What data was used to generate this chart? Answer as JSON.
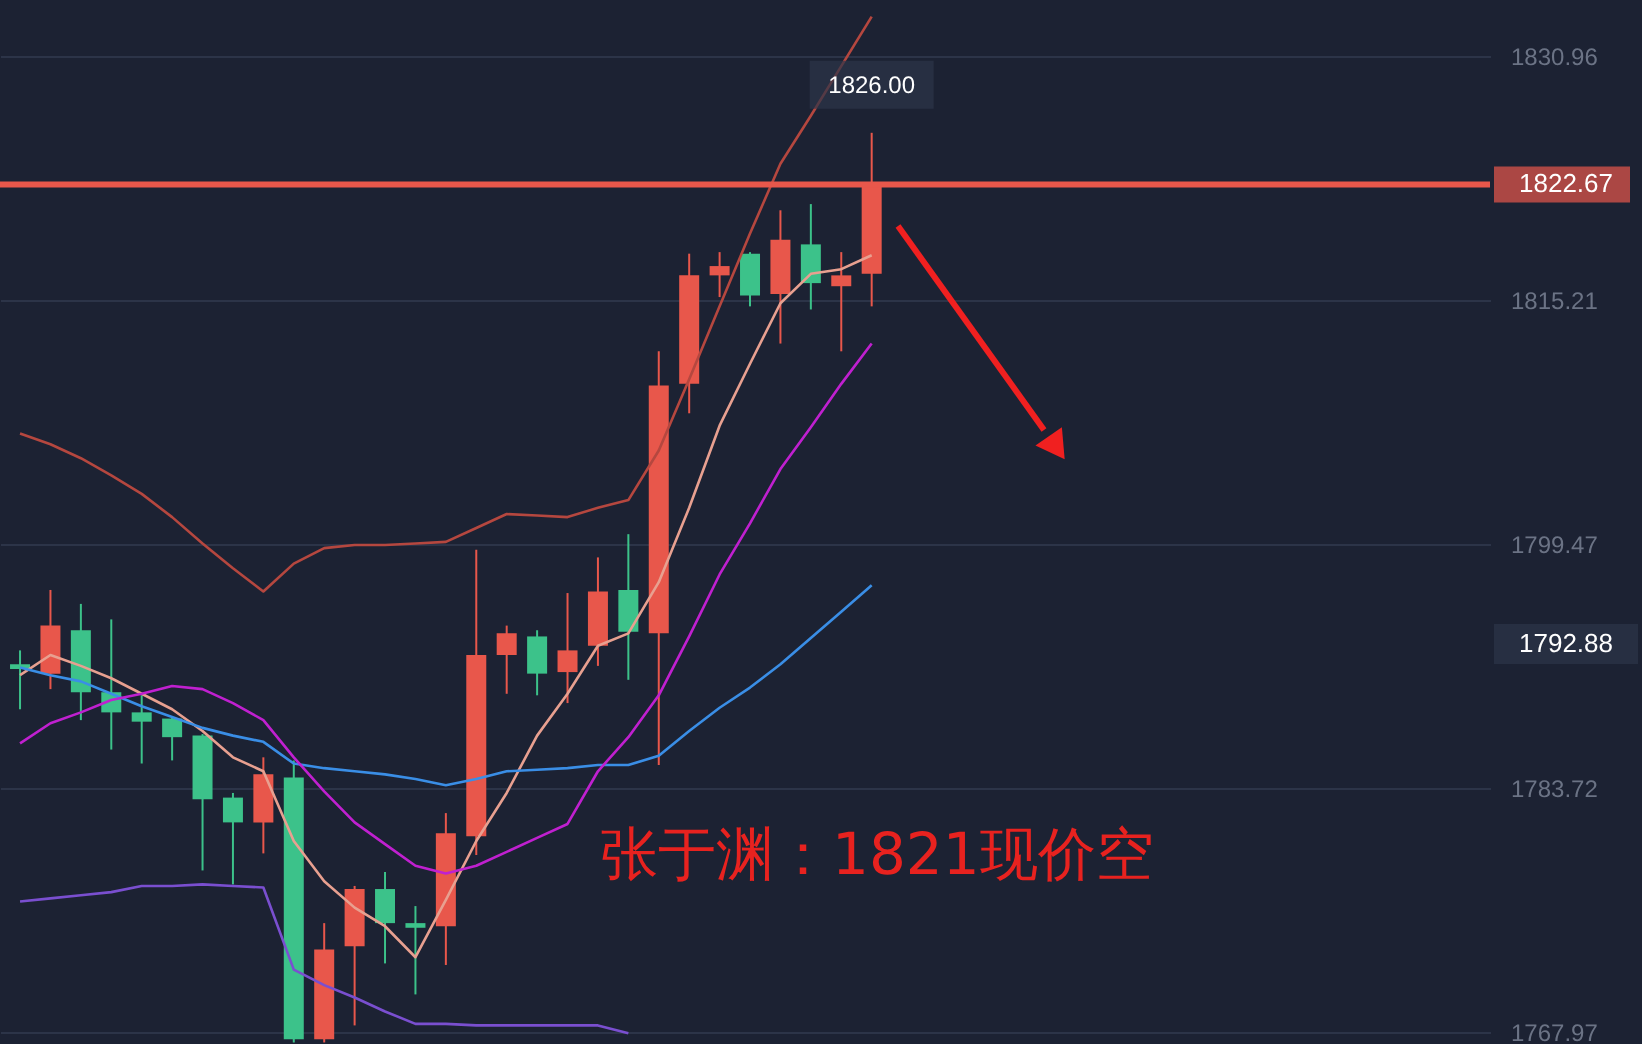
{
  "chart_data": {
    "type": "candlestick",
    "categories": [
      null,
      null,
      null,
      null,
      null,
      null,
      null,
      null,
      null,
      null,
      null,
      null,
      null,
      null,
      null,
      null,
      null,
      null,
      null,
      null,
      null,
      null,
      null,
      null,
      null,
      null,
      null,
      null,
      null
    ],
    "ohlc": [
      [
        1791.7,
        1792.6,
        1788.8,
        1791.4
      ],
      [
        1791.1,
        1796.5,
        1790.1,
        1794.2
      ],
      [
        1793.9,
        1795.6,
        1788.1,
        1789.9
      ],
      [
        1789.9,
        1794.6,
        1786.2,
        1788.6
      ],
      [
        1788.6,
        1789.7,
        1785.3,
        1788.0
      ],
      [
        1788.2,
        1788.3,
        1785.5,
        1787.0
      ],
      [
        1787.1,
        1787.2,
        1778.4,
        1783.0
      ],
      [
        1783.1,
        1783.4,
        1777.5,
        1781.5
      ],
      [
        1781.5,
        1785.7,
        1779.5,
        1784.6
      ],
      [
        1784.4,
        1785.5,
        1767.3,
        1767.5
      ],
      [
        1767.5,
        1775.0,
        1767.3,
        1773.3
      ],
      [
        1773.5,
        1777.4,
        1768.4,
        1777.2
      ],
      [
        1777.2,
        1778.3,
        1772.4,
        1775.0
      ],
      [
        1775.0,
        1776.1,
        1770.4,
        1774.7
      ],
      [
        1774.8,
        1782.1,
        1772.3,
        1780.8
      ],
      [
        1780.6,
        1799.1,
        1779.4,
        1792.3
      ],
      [
        1792.3,
        1794.2,
        1789.8,
        1793.7
      ],
      [
        1793.5,
        1793.9,
        1789.7,
        1791.1
      ],
      [
        1791.2,
        1796.3,
        1789.2,
        1792.6
      ],
      [
        1792.9,
        1798.6,
        1791.6,
        1796.4
      ],
      [
        1796.5,
        1800.1,
        1790.7,
        1793.8
      ],
      [
        1793.7,
        1811.9,
        1785.2,
        1809.7
      ],
      [
        1809.8,
        1818.2,
        1807.9,
        1816.8
      ],
      [
        1816.8,
        1818.3,
        1815.4,
        1817.4
      ],
      [
        1818.2,
        1818.3,
        1814.8,
        1815.5
      ],
      [
        1815.6,
        1821.0,
        1812.4,
        1819.1
      ],
      [
        1818.8,
        1821.4,
        1814.6,
        1816.3
      ],
      [
        1816.1,
        1818.3,
        1811.9,
        1816.8
      ],
      [
        1816.9,
        1826.0,
        1814.8,
        1822.67
      ]
    ],
    "colors": [
      "#3cc28a",
      "#e8574b",
      "#3cc28a",
      "#3cc28a",
      "#3cc28a",
      "#3cc28a",
      "#3cc28a",
      "#3cc28a",
      "#e8574b",
      "#3cc28a",
      "#e8574b",
      "#e8574b",
      "#3cc28a",
      "#3cc28a",
      "#e8574b",
      "#e8574b",
      "#e8574b",
      "#3cc28a",
      "#e8574b",
      "#e8574b",
      "#3cc28a",
      "#e8574b",
      "#e8574b",
      "#e8574b",
      "#3cc28a",
      "#e8574b",
      "#3cc28a",
      "#e8574b",
      "#e8574b"
    ],
    "series": [
      {
        "type": "line",
        "color": "#b5473f",
        "values": [
          1806.6,
          1805.9,
          1805.0,
          1803.9,
          1802.7,
          1801.2,
          1799.5,
          1797.9,
          1796.4,
          1798.2,
          1799.2,
          1799.4,
          1799.4,
          1799.5,
          1799.6,
          1800.5,
          1801.4,
          1801.3,
          1801.2,
          1801.8,
          1802.3,
          1805.5,
          1810.1,
          1814.8,
          1819.5,
          1824.0,
          1827.1,
          1830.3,
          1833.5
        ]
      },
      {
        "type": "line",
        "color": "#e8a090",
        "values": [
          1791.0,
          1792.3,
          1791.6,
          1790.8,
          1789.8,
          1788.8,
          1787.4,
          1785.7,
          1784.8,
          1780.3,
          1777.7,
          1776.0,
          1774.8,
          1772.8,
          1776.5,
          1780.3,
          1783.4,
          1787.1,
          1789.8,
          1792.9,
          1793.7,
          1797.0,
          1801.8,
          1807.1,
          1811.1,
          1815.0,
          1816.9,
          1817.2,
          1818.1
        ]
      },
      {
        "type": "line",
        "color": "#3a8ee6",
        "values": [
          1791.5,
          1791.0,
          1790.6,
          1789.8,
          1789.0,
          1788.3,
          1787.6,
          1787.1,
          1786.7,
          1785.3,
          1785.0,
          1784.8,
          1784.6,
          1784.3,
          1783.9,
          1784.3,
          1784.8,
          1784.9,
          1785.0,
          1785.2,
          1785.2,
          1785.8,
          1787.4,
          1788.9,
          1790.2,
          1791.7,
          1793.4,
          1795.1,
          1796.8
        ]
      },
      {
        "type": "line",
        "color": "#c020d0",
        "values": [
          1786.6,
          1787.9,
          1788.6,
          1789.4,
          1789.8,
          1790.3,
          1790.1,
          1789.2,
          1788.1,
          1785.7,
          1783.5,
          1781.5,
          1780.1,
          1778.7,
          1778.2,
          1778.7,
          1779.6,
          1780.5,
          1781.4,
          1784.8,
          1787.0,
          1789.7,
          1793.5,
          1797.5,
          1800.8,
          1804.3,
          1807.0,
          1809.8,
          1812.4
        ]
      },
      {
        "type": "line",
        "color": "#7a4fd0",
        "values": [
          1776.4,
          1776.6,
          1776.8,
          1777.0,
          1777.4,
          1777.4,
          1777.5,
          1777.4,
          1777.3,
          1772.0,
          1771.0,
          1770.2,
          1769.3,
          1768.5,
          1768.5,
          1768.4,
          1768.4,
          1768.4,
          1768.4,
          1768.4,
          1767.9,
          null,
          null,
          null,
          null,
          null,
          null,
          null,
          null
        ]
      }
    ],
    "ylim": [
      1767.2,
      1834.57
    ],
    "yticks": [
      1830.96,
      1815.21,
      1799.47,
      1783.72,
      1767.97
    ],
    "grid": "y",
    "tick_labels": "y",
    "ref_lines": [
      {
        "axis": "y",
        "value": 1822.67,
        "label": "1822.67",
        "color": "#e8574b"
      }
    ],
    "annotations": [
      "张于渊：1821现价空",
      {
        "text": "1826.00",
        "y": 1826.0
      },
      "1792.88"
    ]
  }
}
